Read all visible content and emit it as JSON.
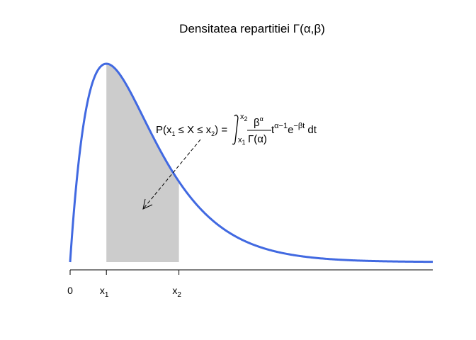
{
  "chart_data": {
    "type": "area",
    "title": "Densitatea repartitiei Γ(α,β)",
    "xlabel": "",
    "ylabel": "",
    "grid": false,
    "legend": "none",
    "distribution": "gamma",
    "shape": 2,
    "rate": 1,
    "xlim": [
      0,
      10
    ],
    "x_ticks": [
      {
        "value": 0,
        "label": "0"
      },
      {
        "value": 1,
        "label": "x",
        "sub": "1"
      },
      {
        "value": 3,
        "label": "x",
        "sub": "2"
      }
    ],
    "series": [
      {
        "x": [
          0,
          0.1,
          0.2,
          0.3,
          0.4,
          0.5,
          0.6,
          0.7,
          0.8,
          0.9,
          1.0,
          1.2,
          1.4,
          1.6,
          1.8,
          2.0,
          2.25,
          2.5,
          2.75,
          3.0,
          3.5,
          4.0,
          4.5,
          5.0,
          6.0,
          7.0,
          8.0,
          9.0,
          10.0
        ],
        "y": [
          0,
          0.09,
          0.164,
          0.222,
          0.268,
          0.303,
          0.329,
          0.348,
          0.359,
          0.366,
          0.368,
          0.361,
          0.345,
          0.323,
          0.298,
          0.271,
          0.237,
          0.205,
          0.175,
          0.149,
          0.106,
          0.073,
          0.05,
          0.034,
          0.015,
          0.006,
          0.003,
          0.001,
          0.0005
        ],
        "color": "#4169E1"
      }
    ],
    "shaded_region": {
      "from": 1,
      "to": 3,
      "color": "#cccccc"
    },
    "annotation": {
      "lhs": "P(x",
      "lhs_sub1": "1",
      "lhs_mid": " ≤ X ≤ x",
      "lhs_sub2": "2",
      "lhs_end": ") =",
      "int_upper": "x",
      "int_upper_sub": "2",
      "int_lower": "x",
      "int_lower_sub": "1",
      "numerator": "β",
      "numerator_exp": "α",
      "denominator": "Γ(α)",
      "t_base": "t",
      "t_exp": "α−1",
      "e_base": "e",
      "e_exp": "−βt",
      "dt": " dt"
    }
  }
}
